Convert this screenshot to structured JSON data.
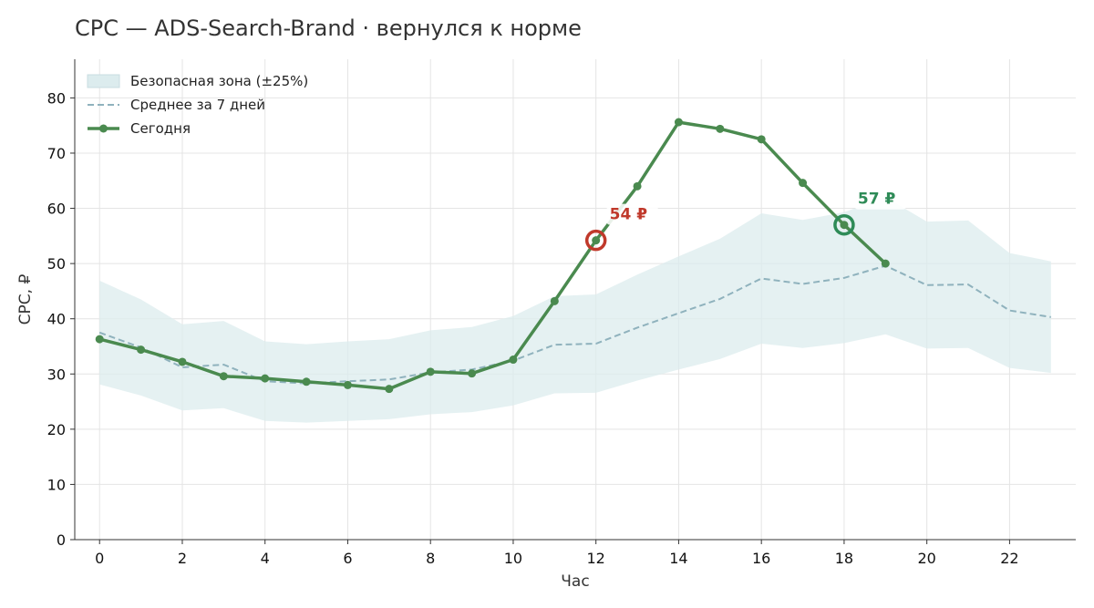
{
  "title": "CPC — ADS-Search-Brand · вернулся к норме",
  "colors": {
    "today": "#4a8a4f",
    "average": "#8fb2bd",
    "band_fill": "#dcecee",
    "alert_marker": "#c0392b",
    "recovery_marker": "#2e8b57",
    "grid": "#e4e4e4"
  },
  "chart_data": {
    "type": "line",
    "title": "CPC — ADS-Search-Brand · вернулся к норме",
    "xlabel": "Час",
    "ylabel": "CPC, ₽",
    "xlim": [
      -0.6,
      23.6
    ],
    "ylim": [
      0,
      87
    ],
    "x_ticks": [
      0,
      2,
      4,
      6,
      8,
      10,
      12,
      14,
      16,
      18,
      20,
      22
    ],
    "y_ticks": [
      0,
      10,
      20,
      30,
      40,
      50,
      60,
      70,
      80
    ],
    "grid": true,
    "legend_position": "top-left",
    "legend": [
      {
        "label": "Безопасная зона (±25%)",
        "kind": "band"
      },
      {
        "label": "Среднее за 7 дней",
        "kind": "dashed"
      },
      {
        "label": "Сегодня",
        "kind": "line-marker"
      }
    ],
    "series": [
      {
        "name": "Среднее за 7 дней",
        "style": "dashed",
        "x": [
          0,
          1,
          2,
          3,
          4,
          5,
          6,
          7,
          8,
          9,
          10,
          11,
          12,
          13,
          14,
          15,
          16,
          17,
          18,
          19,
          20,
          21,
          22,
          23
        ],
        "values": [
          37.5,
          34.8,
          31.2,
          31.7,
          28.7,
          28.3,
          28.7,
          29.0,
          30.3,
          30.8,
          32.4,
          35.3,
          35.5,
          38.4,
          41.0,
          43.6,
          47.3,
          46.3,
          47.4,
          49.6,
          46.1,
          46.2,
          41.5,
          40.3
        ]
      },
      {
        "name": "Безопасная зона (±25%)",
        "style": "band",
        "x": [
          0,
          1,
          2,
          3,
          4,
          5,
          6,
          7,
          8,
          9,
          10,
          11,
          12,
          13,
          14,
          15,
          16,
          17,
          18,
          19,
          20,
          21,
          22,
          23
        ],
        "lower": [
          28.1,
          26.1,
          23.4,
          23.8,
          21.5,
          21.2,
          21.5,
          21.8,
          22.7,
          23.1,
          24.3,
          26.5,
          26.6,
          28.8,
          30.8,
          32.7,
          35.5,
          34.7,
          35.6,
          37.2,
          34.6,
          34.7,
          31.1,
          30.2
        ],
        "upper": [
          46.9,
          43.5,
          39.0,
          39.6,
          35.9,
          35.4,
          35.9,
          36.3,
          37.9,
          38.5,
          40.5,
          44.1,
          44.4,
          48.0,
          51.3,
          54.5,
          59.1,
          57.9,
          59.3,
          62.0,
          57.6,
          57.8,
          51.9,
          50.4
        ]
      },
      {
        "name": "Сегодня",
        "style": "line-marker",
        "x": [
          0,
          1,
          2,
          3,
          4,
          5,
          6,
          7,
          8,
          9,
          10,
          11,
          12,
          13,
          14,
          15,
          16,
          17,
          18,
          19
        ],
        "values": [
          36.3,
          34.4,
          32.2,
          29.6,
          29.2,
          28.6,
          28.0,
          27.3,
          30.4,
          30.1,
          32.6,
          43.2,
          54.2,
          64.0,
          75.6,
          74.4,
          72.5,
          64.6,
          57.0,
          50.0
        ]
      }
    ],
    "annotations": [
      {
        "x": 12,
        "y": 54.2,
        "text": "54 ₽",
        "role": "alert"
      },
      {
        "x": 18,
        "y": 57.0,
        "text": "57 ₽",
        "role": "recovery"
      }
    ]
  }
}
